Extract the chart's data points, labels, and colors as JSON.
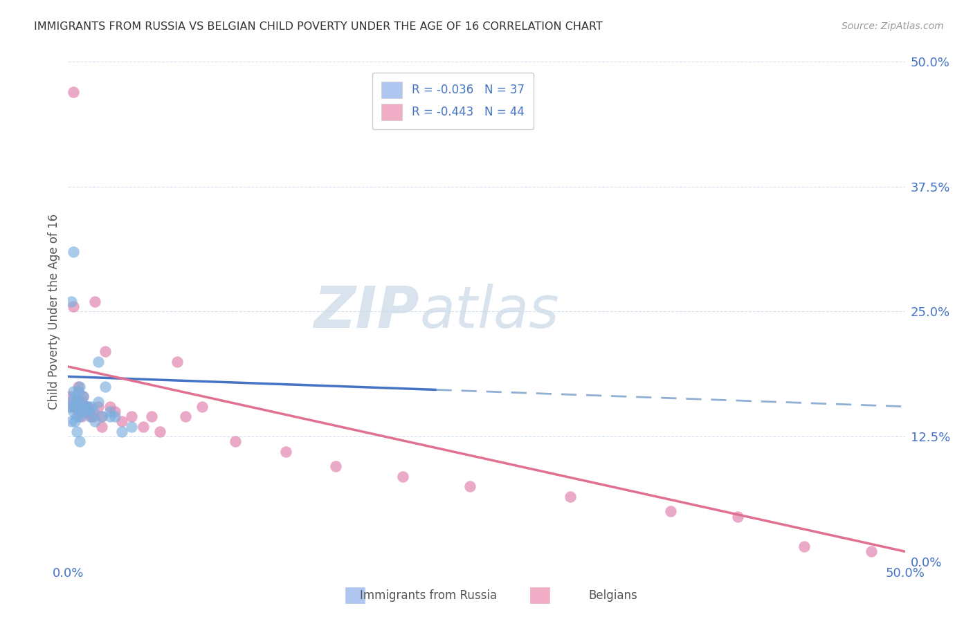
{
  "title": "IMMIGRANTS FROM RUSSIA VS BELGIAN CHILD POVERTY UNDER THE AGE OF 16 CORRELATION CHART",
  "source": "Source: ZipAtlas.com",
  "ylabel": "Child Poverty Under the Age of 16",
  "right_yticks": [
    0.0,
    0.125,
    0.25,
    0.375,
    0.5
  ],
  "right_yticklabels": [
    "0.0%",
    "12.5%",
    "25.0%",
    "37.5%",
    "50.0%"
  ],
  "watermark_zip": "ZIP",
  "watermark_atlas": "atlas",
  "series1_name": "Immigrants from Russia",
  "series2_name": "Belgians",
  "series1_color": "#7baede",
  "series2_color": "#e07ba8",
  "series1_legend_color": "#aec6f0",
  "series2_legend_color": "#f0aec6",
  "xmin": 0.0,
  "xmax": 0.5,
  "ymin": 0.0,
  "ymax": 0.5,
  "series1_x": [
    0.001,
    0.002,
    0.002,
    0.003,
    0.003,
    0.004,
    0.004,
    0.005,
    0.005,
    0.006,
    0.006,
    0.007,
    0.007,
    0.008,
    0.008,
    0.009,
    0.01,
    0.011,
    0.012,
    0.013,
    0.014,
    0.015,
    0.016,
    0.018,
    0.02,
    0.022,
    0.025,
    0.028,
    0.032,
    0.038,
    0.002,
    0.003,
    0.018,
    0.025,
    0.004,
    0.005,
    0.007
  ],
  "series1_y": [
    0.155,
    0.14,
    0.16,
    0.15,
    0.17,
    0.165,
    0.155,
    0.16,
    0.145,
    0.17,
    0.155,
    0.145,
    0.175,
    0.16,
    0.15,
    0.165,
    0.155,
    0.15,
    0.155,
    0.145,
    0.155,
    0.15,
    0.14,
    0.16,
    0.145,
    0.175,
    0.15,
    0.145,
    0.13,
    0.135,
    0.26,
    0.31,
    0.2,
    0.145,
    0.14,
    0.13,
    0.12
  ],
  "series2_x": [
    0.001,
    0.002,
    0.003,
    0.004,
    0.005,
    0.006,
    0.007,
    0.008,
    0.009,
    0.01,
    0.011,
    0.012,
    0.014,
    0.016,
    0.018,
    0.02,
    0.022,
    0.025,
    0.028,
    0.032,
    0.038,
    0.045,
    0.055,
    0.065,
    0.08,
    0.1,
    0.13,
    0.16,
    0.2,
    0.24,
    0.003,
    0.004,
    0.006,
    0.008,
    0.012,
    0.3,
    0.36,
    0.4,
    0.44,
    0.48,
    0.015,
    0.02,
    0.05,
    0.07
  ],
  "series2_y": [
    0.165,
    0.155,
    0.47,
    0.155,
    0.16,
    0.175,
    0.16,
    0.155,
    0.165,
    0.15,
    0.155,
    0.15,
    0.145,
    0.26,
    0.155,
    0.145,
    0.21,
    0.155,
    0.15,
    0.14,
    0.145,
    0.135,
    0.13,
    0.2,
    0.155,
    0.12,
    0.11,
    0.095,
    0.085,
    0.075,
    0.255,
    0.155,
    0.15,
    0.145,
    0.155,
    0.065,
    0.05,
    0.045,
    0.015,
    0.01,
    0.145,
    0.135,
    0.145,
    0.145
  ],
  "trend1_start_y": 0.185,
  "trend1_end_y": 0.155,
  "trend1_solid_end_x": 0.22,
  "trend2_start_y": 0.195,
  "trend2_end_y": 0.01,
  "grid_color": "#c8d8e8",
  "grid_alpha": 0.8
}
